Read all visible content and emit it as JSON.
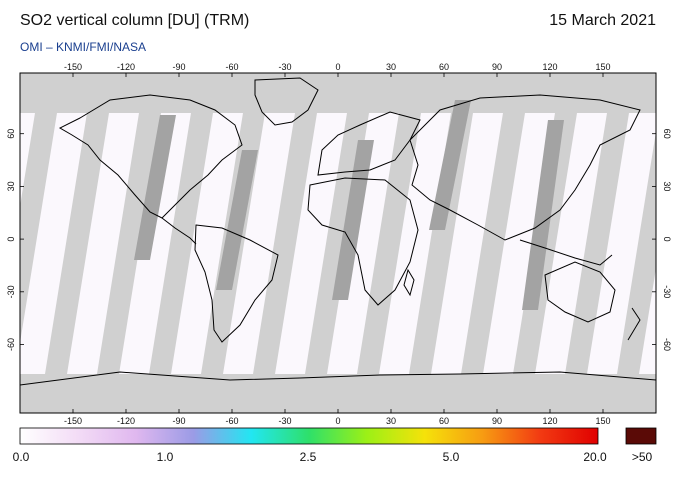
{
  "header": {
    "title": "SO2 vertical column [DU] (TRM)",
    "date": "15 March 2021",
    "source": "OMI  –  KNMI/FMI/NASA"
  },
  "map": {
    "lon_ticks": [
      "-150",
      "-120",
      "-90",
      "-60",
      "-30",
      "0",
      "30",
      "60",
      "90",
      "120",
      "150"
    ],
    "lat_ticks": [
      "60",
      "30",
      "0",
      "-30",
      "-60"
    ],
    "colors": {
      "no_data": "#d0d0d0",
      "gap_dark": "#a3a3a3",
      "background": "#fbf8fd",
      "coastline": "#000000"
    }
  },
  "colorbar": {
    "labels": [
      "0.0",
      "1.0",
      "2.5",
      "5.0",
      "20.0",
      ">50"
    ],
    "gradient": [
      "#ffffff",
      "#f3dcf6",
      "#e0b8ef",
      "#9b9be6",
      "#22e6f2",
      "#2ee06a",
      "#9cf016",
      "#f5e20a",
      "#f79c12",
      "#f23a12",
      "#e00000"
    ],
    "overflow_color": "#5a0a06"
  }
}
